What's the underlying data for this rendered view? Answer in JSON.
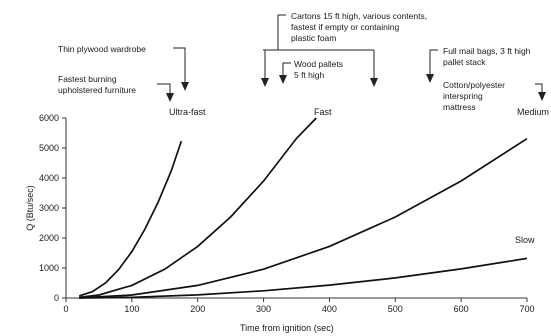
{
  "chart_data": {
    "type": "line",
    "title": "",
    "xlabel": "Time from ignition (sec)",
    "ylabel": "Q (Btu/sec)",
    "xlim": [
      0,
      700
    ],
    "ylim": [
      0,
      6000
    ],
    "xticks": [
      0,
      100,
      200,
      300,
      400,
      500,
      600,
      700
    ],
    "yticks": [
      0,
      1000,
      2000,
      3000,
      4000,
      5000,
      6000
    ],
    "grid": false,
    "series": [
      {
        "name": "Ultra-fast",
        "x": [
          20,
          40,
          60,
          80,
          100,
          120,
          140,
          160,
          175
        ],
        "y": [
          70,
          210,
          500,
          950,
          1550,
          2300,
          3200,
          4250,
          5230
        ]
      },
      {
        "name": "Fast",
        "x": [
          20,
          50,
          100,
          150,
          200,
          250,
          300,
          350,
          380
        ],
        "y": [
          20,
          100,
          420,
          960,
          1720,
          2700,
          3900,
          5320,
          6000
        ]
      },
      {
        "name": "Medium",
        "x": [
          20,
          100,
          200,
          300,
          400,
          500,
          600,
          700
        ],
        "y": [
          5,
          100,
          420,
          960,
          1720,
          2700,
          3900,
          5310
        ]
      },
      {
        "name": "Slow",
        "x": [
          20,
          100,
          200,
          300,
          400,
          500,
          600,
          700
        ],
        "y": [
          1,
          25,
          105,
          240,
          430,
          670,
          970,
          1320
        ]
      }
    ],
    "annotations": {
      "wardrobe": "Thin plywood wardrobe",
      "furniture": "Fastest burning upholstered furniture",
      "cartons": "Cartons 15 ft high, various contents, fastest if empty or containing plastic foam",
      "pallets": "Wood pallets 5 ft high",
      "mailbags": "Full mail bags, 3 ft high pallet stack",
      "mattress": "Cotton/polyester interspring mattress"
    }
  }
}
